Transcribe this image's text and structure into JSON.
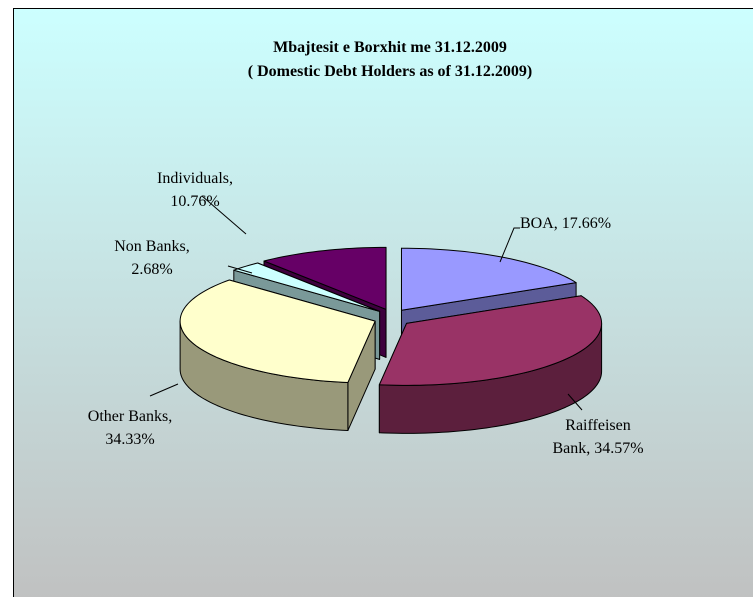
{
  "chart_data": {
    "type": "pie",
    "three_d": true,
    "title": "Mbajtesit e Borxhit me 31.12.2009",
    "subtitle": "( Domestic Debt Holders as of 31.12.2009)",
    "values": [
      17.66,
      34.57,
      34.33,
      2.68,
      10.76
    ],
    "value_labels": [
      "BOA, 17.66%",
      "Raiffeisen Bank, 34.57%",
      "Other Banks, 34.33%",
      "Non Banks, 2.68%",
      "Individuals, 10.76%"
    ],
    "colors": [
      "#9999ff",
      "#993366",
      "#ffffcc",
      "#ccffff",
      "#660066"
    ]
  }
}
